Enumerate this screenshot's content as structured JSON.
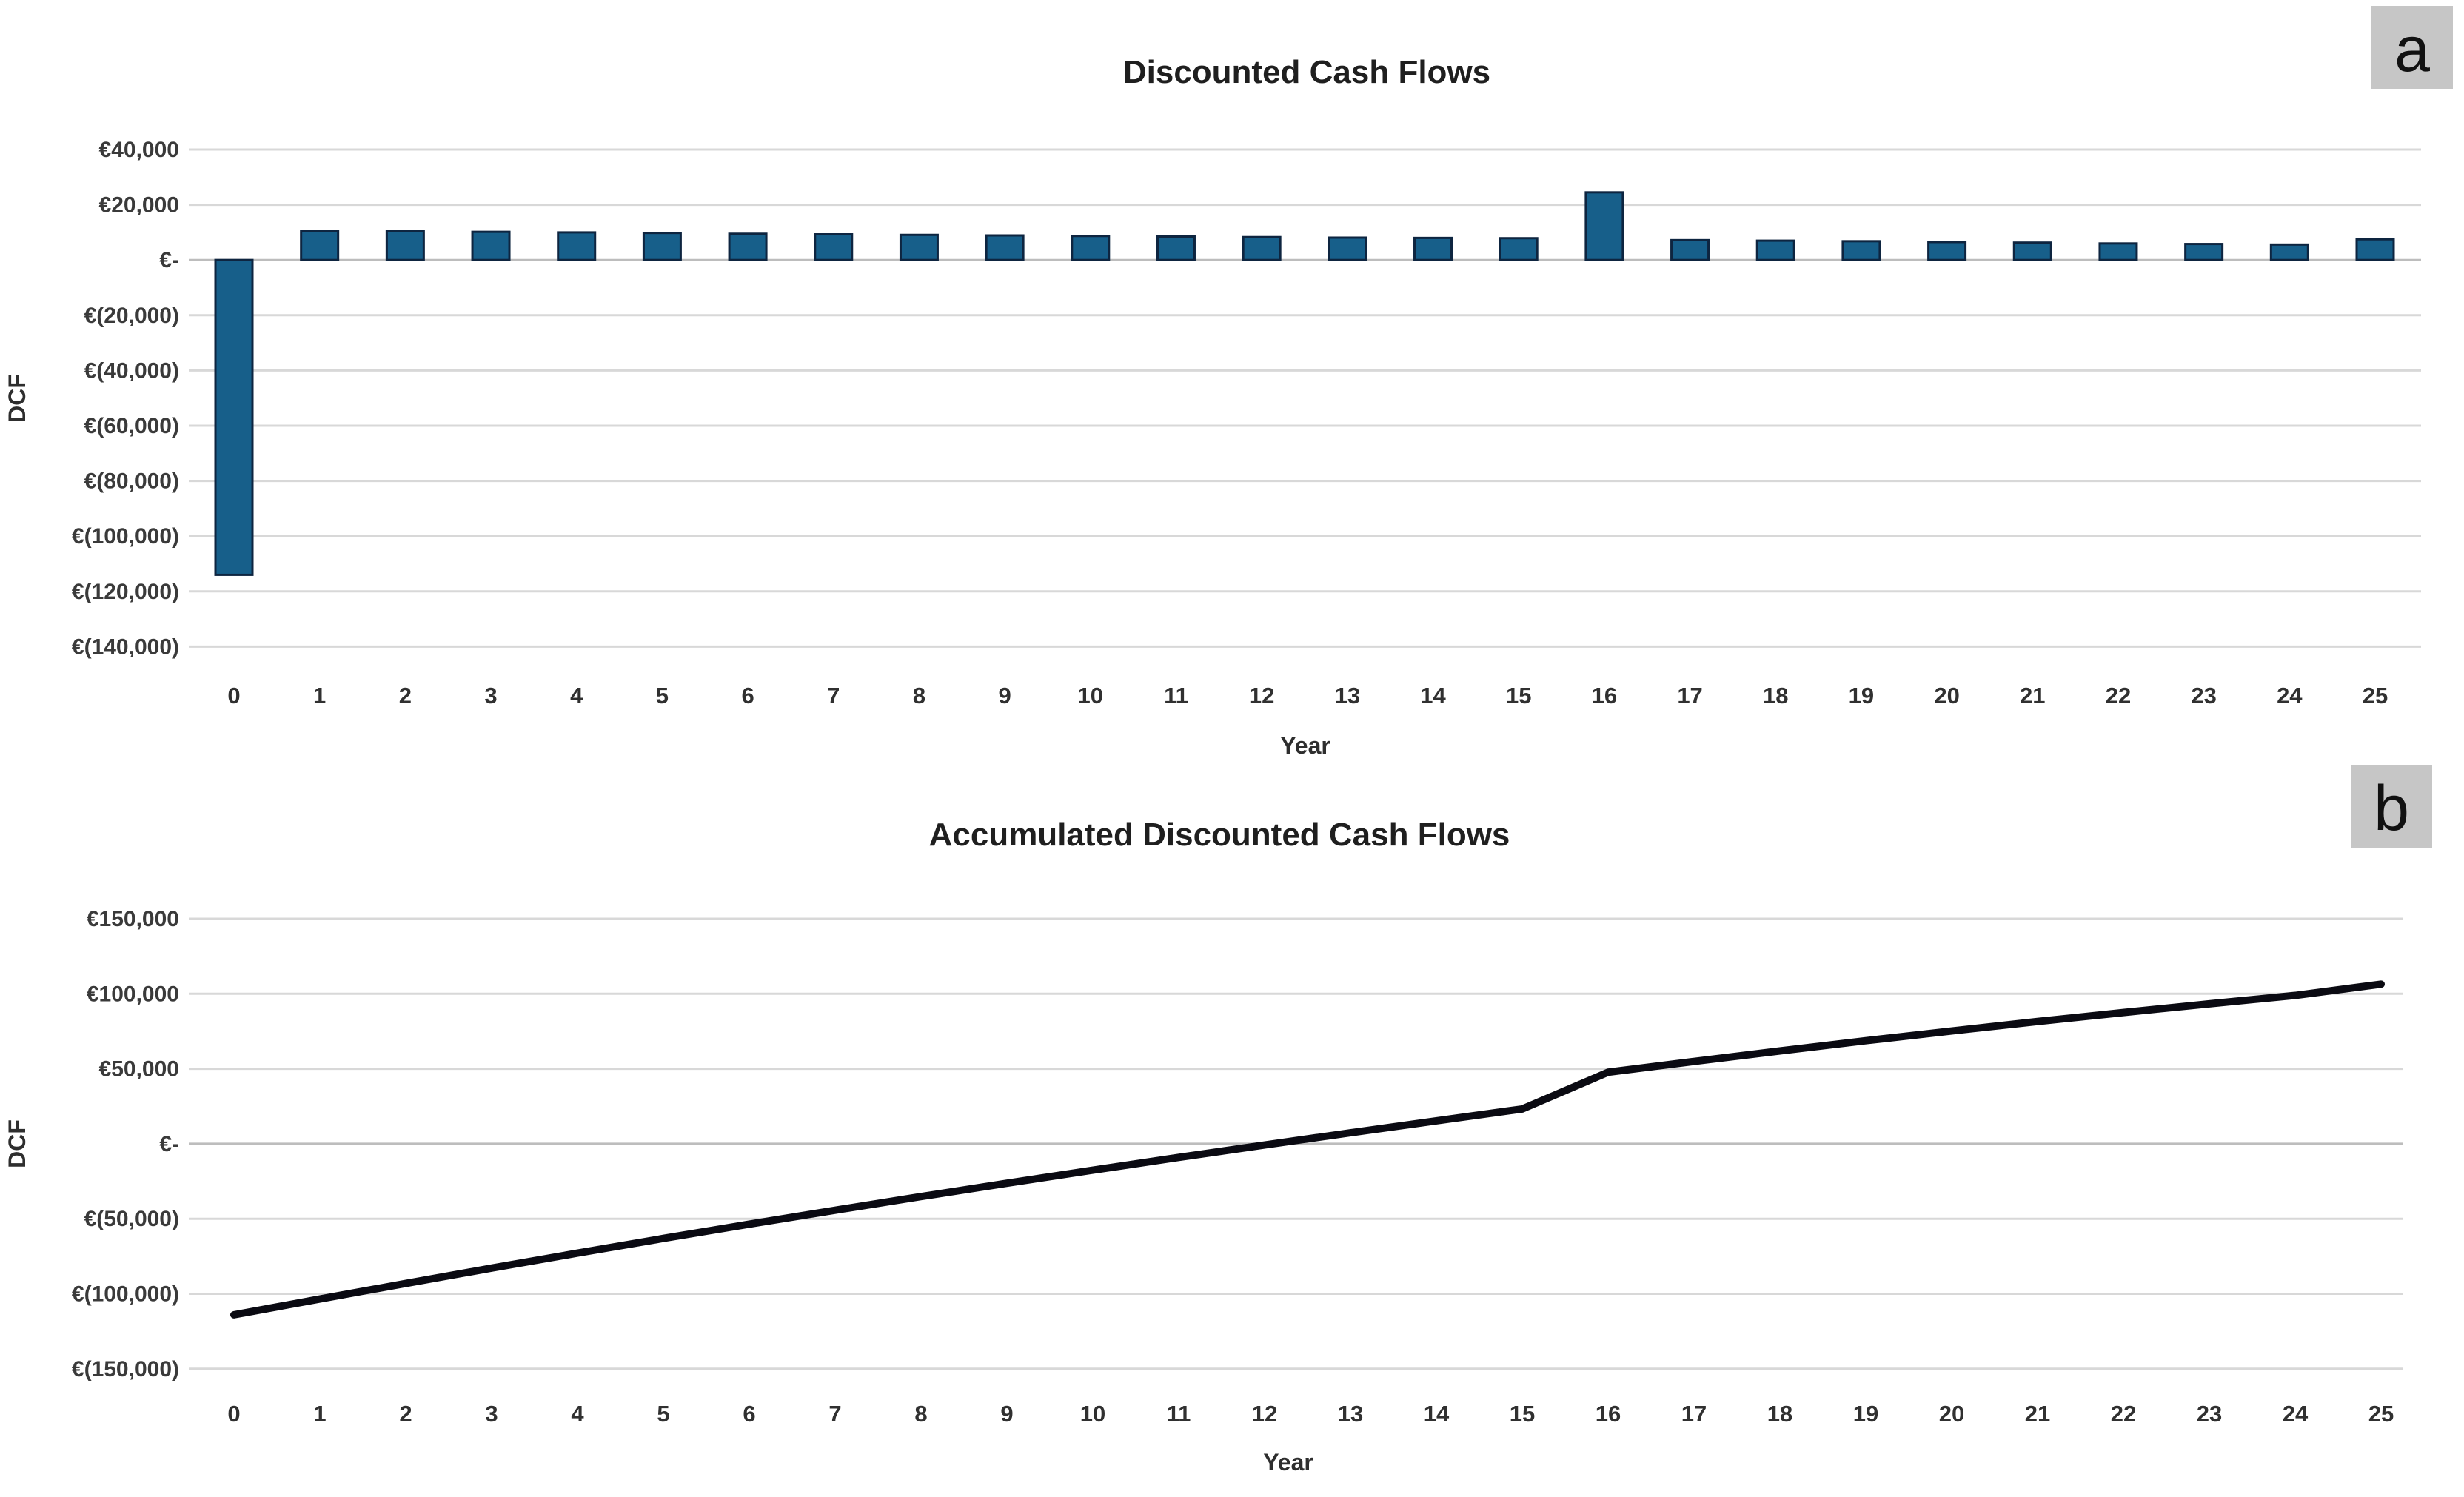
{
  "panel_labels": {
    "a": {
      "text": "a",
      "background": "#c6c6c6",
      "color": "#111111"
    },
    "b": {
      "text": "b",
      "background": "#c6c6c6",
      "color": "#111111"
    }
  },
  "chart_data": [
    {
      "id": "discounted-cash-flows",
      "type": "bar",
      "title": "Discounted Cash Flows",
      "xlabel": "Year",
      "ylabel": "DCF",
      "grid": true,
      "legend": "none",
      "bar_color": "#175f8a",
      "bar_border_color": "#0e2540",
      "ylim": [
        -140000,
        40000
      ],
      "ytick_step": 20000,
      "ytick_labels": [
        "€40,000",
        "€20,000",
        "€-",
        "€(20,000)",
        "€(40,000)",
        "€(60,000)",
        "€(80,000)",
        "€(100,000)",
        "€(120,000)",
        "€(140,000)"
      ],
      "categories": [
        "0",
        "1",
        "2",
        "3",
        "4",
        "5",
        "6",
        "7",
        "8",
        "9",
        "10",
        "11",
        "12",
        "13",
        "14",
        "15",
        "16",
        "17",
        "18",
        "19",
        "20",
        "21",
        "22",
        "23",
        "24",
        "25"
      ],
      "values": [
        -114000,
        10500,
        10400,
        10200,
        10000,
        9800,
        9500,
        9300,
        9100,
        8900,
        8700,
        8500,
        8300,
        8100,
        8000,
        7900,
        24500,
        7200,
        7000,
        6800,
        6500,
        6300,
        6000,
        5800,
        5600,
        7500
      ]
    },
    {
      "id": "accumulated-discounted-cash-flows",
      "type": "line",
      "title": "Accumulated Discounted Cash Flows",
      "xlabel": "Year",
      "ylabel": "DCF",
      "grid": true,
      "legend": "none",
      "line_color": "#0a0a12",
      "line_width": 10,
      "ylim": [
        -150000,
        150000
      ],
      "ytick_step": 50000,
      "ytick_labels": [
        "€150,000",
        "€100,000",
        "€50,000",
        "€-",
        "€(50,000)",
        "€(100,000)",
        "€(150,000)"
      ],
      "categories": [
        "0",
        "1",
        "2",
        "3",
        "4",
        "5",
        "6",
        "7",
        "8",
        "9",
        "10",
        "11",
        "12",
        "13",
        "14",
        "15",
        "16",
        "17",
        "18",
        "19",
        "20",
        "21",
        "22",
        "23",
        "24",
        "25"
      ],
      "values": [
        -114000,
        -103500,
        -93100,
        -82900,
        -72900,
        -63100,
        -53600,
        -44300,
        -35200,
        -26300,
        -17600,
        -9100,
        -800,
        7300,
        15300,
        23200,
        47700,
        54900,
        61900,
        68700,
        75200,
        81500,
        87500,
        93300,
        98900,
        106400
      ]
    }
  ]
}
